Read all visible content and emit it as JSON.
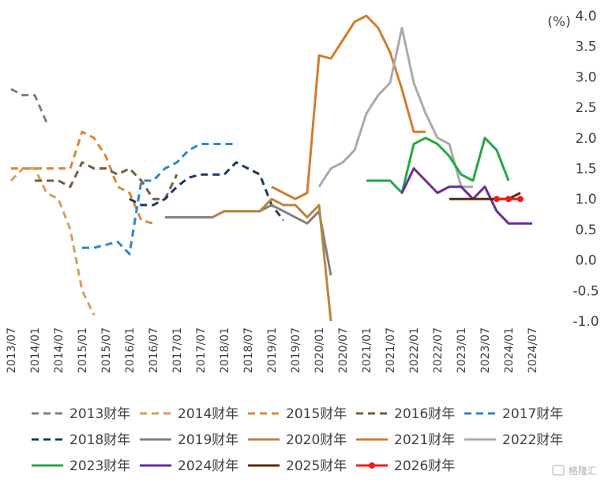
{
  "watermark": "格隆汇",
  "chart_data": {
    "type": "line",
    "unit_label": "(%)",
    "y_ticks": [
      "4.0",
      "3.5",
      "3.0",
      "2.5",
      "2.0",
      "1.5",
      "1.0",
      "0.5",
      "0.0",
      "-0.5",
      "-1.0"
    ],
    "ylim": [
      -1.0,
      4.0
    ],
    "x_ticks": [
      "2013/07",
      "2014/01",
      "2014/07",
      "2015/01",
      "2015/07",
      "2016/01",
      "2016/07",
      "2017/01",
      "2017/07",
      "2018/01",
      "2018/07",
      "2019/01",
      "2019/07",
      "2020/01",
      "2020/07",
      "2021/01",
      "2021/07",
      "2022/01",
      "2022/07",
      "2023/01",
      "2023/07",
      "2024/01",
      "2024/07"
    ],
    "series": [
      {
        "name": "2013财年",
        "color": "#7f7f7f",
        "dash": true,
        "marker": false,
        "x": [
          "2013/07",
          "2013/10",
          "2014/01",
          "2014/04"
        ],
        "y": [
          2.8,
          2.7,
          2.7,
          2.25
        ]
      },
      {
        "name": "2014财年",
        "color": "#d4a05a",
        "dash": true,
        "marker": false,
        "x": [
          "2013/07",
          "2013/10",
          "2014/01",
          "2014/04",
          "2014/07",
          "2014/10",
          "2015/01",
          "2015/04"
        ],
        "y": [
          1.3,
          1.5,
          1.5,
          1.1,
          1.0,
          0.5,
          -0.5,
          -0.9
        ]
      },
      {
        "name": "2015财年",
        "color": "#d8883a",
        "dash": true,
        "marker": false,
        "x": [
          "2013/07",
          "2013/10",
          "2014/01",
          "2014/04",
          "2014/07",
          "2014/10",
          "2015/01",
          "2015/04",
          "2015/07",
          "2015/10",
          "2016/01",
          "2016/04",
          "2016/07"
        ],
        "y": [
          1.5,
          1.5,
          1.5,
          1.5,
          1.5,
          1.5,
          2.1,
          2.0,
          1.7,
          1.2,
          1.1,
          0.65,
          0.6
        ]
      },
      {
        "name": "2016财年",
        "color": "#7a5c3a",
        "dash": true,
        "marker": false,
        "x": [
          "2014/01",
          "2014/04",
          "2014/07",
          "2014/10",
          "2015/01",
          "2015/04",
          "2015/07",
          "2015/10",
          "2016/01",
          "2016/04",
          "2016/07",
          "2016/10",
          "2017/01"
        ],
        "y": [
          1.3,
          1.3,
          1.3,
          1.2,
          1.6,
          1.5,
          1.5,
          1.4,
          1.5,
          1.3,
          1.0,
          1.0,
          1.4
        ]
      },
      {
        "name": "2017财年",
        "color": "#2e86c8",
        "dash": true,
        "marker": false,
        "x": [
          "2015/01",
          "2015/04",
          "2015/07",
          "2015/10",
          "2016/01",
          "2016/04",
          "2016/07",
          "2016/10",
          "2017/01",
          "2017/04",
          "2017/07",
          "2017/10",
          "2018/01",
          "2018/04"
        ],
        "y": [
          0.2,
          0.2,
          0.25,
          0.3,
          0.1,
          1.3,
          1.3,
          1.5,
          1.6,
          1.8,
          1.9,
          1.9,
          1.9,
          1.9
        ]
      },
      {
        "name": "2018财年",
        "color": "#1f3864",
        "dash": true,
        "marker": false,
        "x": [
          "2016/01",
          "2016/04",
          "2016/07",
          "2016/10",
          "2017/01",
          "2017/04",
          "2017/07",
          "2017/10",
          "2018/01",
          "2018/04",
          "2018/07",
          "2018/10",
          "2019/01",
          "2019/04"
        ],
        "y": [
          1.0,
          0.9,
          0.9,
          1.0,
          1.2,
          1.35,
          1.4,
          1.4,
          1.4,
          1.6,
          1.5,
          1.4,
          0.9,
          0.65
        ]
      },
      {
        "name": "2019财年",
        "color": "#808080",
        "dash": false,
        "marker": false,
        "x": [
          "2016/10",
          "2017/01",
          "2017/04",
          "2017/07",
          "2017/10",
          "2018/01",
          "2018/04",
          "2018/07",
          "2018/10",
          "2019/01",
          "2019/04",
          "2019/07",
          "2019/10",
          "2020/01",
          "2020/04"
        ],
        "y": [
          0.7,
          0.7,
          0.7,
          0.7,
          0.7,
          0.8,
          0.8,
          0.8,
          0.8,
          0.9,
          0.8,
          0.7,
          0.6,
          0.8,
          -0.25
        ]
      },
      {
        "name": "2020财年",
        "color": "#b8863b",
        "dash": false,
        "marker": false,
        "x": [
          "2017/10",
          "2018/01",
          "2018/04",
          "2018/07",
          "2018/10",
          "2019/01",
          "2019/04",
          "2019/07",
          "2019/10",
          "2020/01",
          "2020/04"
        ],
        "y": [
          0.7,
          0.8,
          0.8,
          0.8,
          0.8,
          1.0,
          0.9,
          0.9,
          0.7,
          0.9,
          -1.0
        ]
      },
      {
        "name": "2021财年",
        "color": "#d27c2c",
        "dash": false,
        "marker": false,
        "x": [
          "2019/01",
          "2019/04",
          "2019/07",
          "2019/10",
          "2020/01",
          "2020/04",
          "2020/07",
          "2020/10",
          "2021/01",
          "2021/04",
          "2021/07",
          "2021/10",
          "2022/01",
          "2022/04"
        ],
        "y": [
          1.2,
          1.1,
          1.0,
          1.1,
          3.35,
          3.3,
          3.6,
          3.9,
          4.0,
          3.8,
          3.4,
          2.8,
          2.1,
          2.1
        ]
      },
      {
        "name": "2022财年",
        "color": "#aaaaaa",
        "dash": false,
        "marker": false,
        "x": [
          "2020/01",
          "2020/04",
          "2020/07",
          "2020/10",
          "2021/01",
          "2021/04",
          "2021/07",
          "2021/10",
          "2022/01",
          "2022/04",
          "2022/07",
          "2022/10",
          "2023/01",
          "2023/04"
        ],
        "y": [
          1.2,
          1.5,
          1.6,
          1.8,
          2.4,
          2.7,
          2.9,
          3.8,
          2.9,
          2.4,
          2.0,
          1.9,
          1.2,
          1.2
        ]
      },
      {
        "name": "2023财年",
        "color": "#22a845",
        "dash": false,
        "marker": false,
        "x": [
          "2021/01",
          "2021/04",
          "2021/07",
          "2021/10",
          "2022/01",
          "2022/04",
          "2022/07",
          "2022/10",
          "2023/01",
          "2023/04",
          "2023/07",
          "2023/10",
          "2024/01"
        ],
        "y": [
          1.3,
          1.3,
          1.3,
          1.1,
          1.9,
          2.0,
          1.9,
          1.7,
          1.4,
          1.3,
          2.0,
          1.8,
          1.3
        ]
      },
      {
        "name": "2024财年",
        "color": "#6a2c9a",
        "dash": false,
        "marker": false,
        "x": [
          "2021/10",
          "2022/01",
          "2022/04",
          "2022/07",
          "2022/10",
          "2023/01",
          "2023/04",
          "2023/07",
          "2023/10",
          "2024/01",
          "2024/04",
          "2024/07"
        ],
        "y": [
          1.1,
          1.5,
          1.3,
          1.1,
          1.2,
          1.2,
          1.0,
          1.2,
          0.8,
          0.6,
          0.6,
          0.6
        ]
      },
      {
        "name": "2025财年",
        "color": "#5a2a0e",
        "dash": false,
        "marker": false,
        "x": [
          "2022/10",
          "2023/01",
          "2023/04",
          "2023/07",
          "2023/10",
          "2024/01",
          "2024/04"
        ],
        "y": [
          1.0,
          1.0,
          1.0,
          1.0,
          1.0,
          1.0,
          1.1
        ]
      },
      {
        "name": "2026财年",
        "color": "#ee1c1c",
        "dash": false,
        "marker": true,
        "x": [
          "2023/10",
          "2024/01",
          "2024/04"
        ],
        "y": [
          1.0,
          1.0,
          1.0
        ]
      }
    ],
    "grid": false,
    "legend_position": "bottom"
  }
}
